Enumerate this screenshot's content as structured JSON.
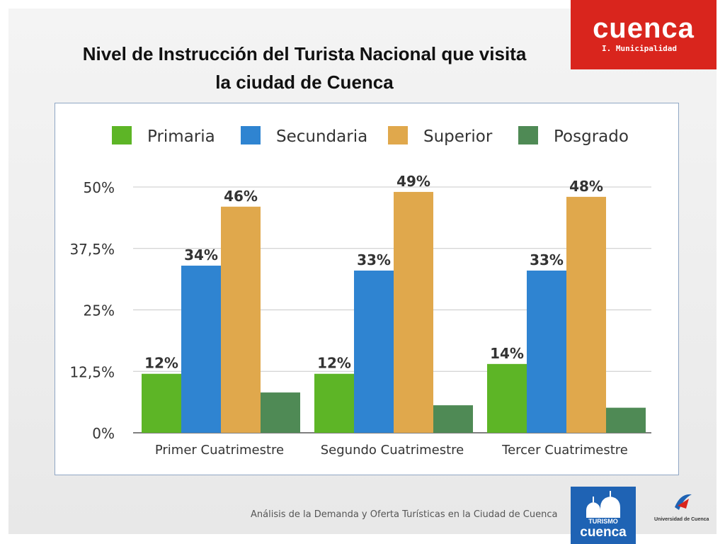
{
  "title": {
    "line1": "Nivel de Instrucción del Turista Nacional que visita",
    "line2": "la ciudad de Cuenca"
  },
  "brand": {
    "name": "cuenca",
    "subtitle": "I. Municipalidad"
  },
  "footer": {
    "text": "Análisis de la Demanda y Oferta Turísticas en la Ciudad de Cuenca",
    "turismo_label": "TURISMO",
    "turismo_city": "cuenca",
    "university": "Universidad de Cuenca"
  },
  "chart_data": {
    "type": "bar",
    "title": "",
    "xlabel": "",
    "ylabel": "",
    "categories": [
      "Primer Cuatrimestre",
      "Segundo Cuatrimestre",
      "Tercer Cuatrimestre"
    ],
    "series": [
      {
        "name": "Primaria",
        "color": "#5db526",
        "values": [
          12,
          12,
          14
        ],
        "labels": [
          "12%",
          "12%",
          "14%"
        ]
      },
      {
        "name": "Secundaria",
        "color": "#2f84d1",
        "values": [
          34,
          33,
          33
        ],
        "labels": [
          "34%",
          "33%",
          "33%"
        ]
      },
      {
        "name": "Superior",
        "color": "#e0a84c",
        "values": [
          46,
          49,
          48
        ],
        "labels": [
          "46%",
          "49%",
          "48%"
        ]
      },
      {
        "name": "Posgrado",
        "color": "#4f8a55",
        "values": [
          8.2,
          5.6,
          5.1
        ],
        "labels": [
          "",
          "",
          ""
        ]
      }
    ],
    "ylim": [
      0,
      50
    ],
    "yticks": [
      0,
      12.5,
      25,
      37.5,
      50
    ],
    "ytick_labels": [
      "0%",
      "12,5%",
      "25%",
      "37,5%",
      "50%"
    ],
    "grid": true,
    "legend_position": "top"
  }
}
